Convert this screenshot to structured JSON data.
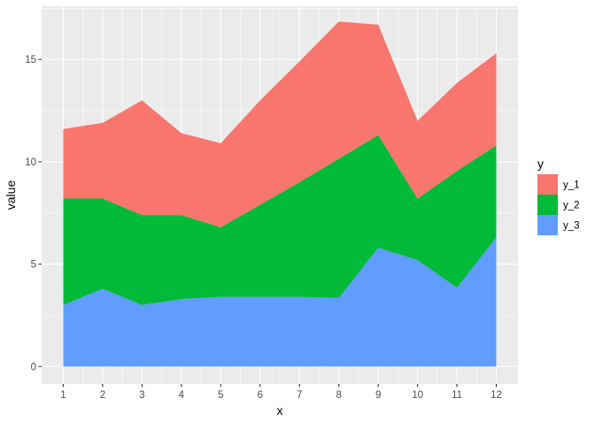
{
  "chart_data": {
    "type": "area",
    "stacked": true,
    "x": [
      1,
      2,
      3,
      4,
      5,
      6,
      7,
      8,
      9,
      10,
      11,
      12
    ],
    "series": [
      {
        "name": "y_1",
        "color": "#F8766D",
        "values": [
          3.4,
          3.7,
          5.6,
          4.0,
          4.1,
          5.1,
          5.9,
          6.7,
          5.4,
          3.8,
          4.3,
          4.5
        ]
      },
      {
        "name": "y_2",
        "color": "#00BA38",
        "values": [
          5.2,
          4.4,
          4.4,
          4.1,
          3.4,
          4.5,
          5.6,
          6.8,
          5.5,
          3.0,
          5.7,
          4.5
        ]
      },
      {
        "name": "y_3",
        "color": "#619CFF",
        "values": [
          3.0,
          3.8,
          3.0,
          3.3,
          3.4,
          3.4,
          3.4,
          3.35,
          5.8,
          5.2,
          3.85,
          6.3
        ]
      }
    ],
    "xlabel": "x",
    "ylabel": "value",
    "legend_title": "y",
    "legend_position": "right",
    "xlim": [
      0.45,
      12.55
    ],
    "ylim": [
      -0.85,
      17.6
    ],
    "x_ticks": [
      "1",
      "2",
      "3",
      "4",
      "5",
      "6",
      "7",
      "8",
      "9",
      "10",
      "11",
      "12"
    ],
    "y_ticks": [
      "0",
      "5",
      "10",
      "15"
    ],
    "grid": true,
    "panel_background": "#EBEBEB",
    "grid_color": "#FFFFFF"
  }
}
